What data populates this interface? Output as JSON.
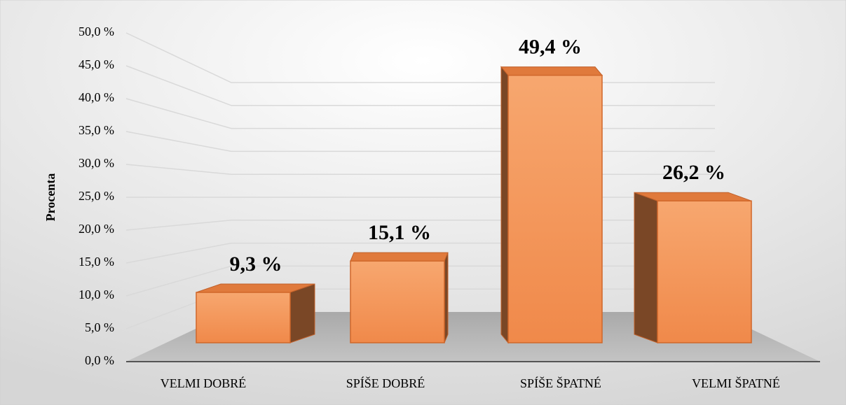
{
  "chart_data": {
    "type": "bar3d",
    "y_label": "Procenta",
    "categories": [
      "VELMI DOBRÉ",
      "SPÍŠE DOBRÉ",
      "SPÍŠE ŠPATNÉ",
      "VELMI ŠPATNÉ"
    ],
    "values": [
      9.3,
      15.1,
      49.4,
      26.2
    ],
    "value_labels": [
      "9,3 %",
      "15,1 %",
      "49,4 %",
      "26,2 %"
    ],
    "color": "#f0894a",
    "ylim": [
      0,
      50
    ],
    "yticks": [
      {
        "value": 0,
        "label": "0,0 %"
      },
      {
        "value": 5,
        "label": "5,0 %"
      },
      {
        "value": 10,
        "label": "10,0 %"
      },
      {
        "value": 15,
        "label": "15,0 %"
      },
      {
        "value": 20,
        "label": "20,0 %"
      },
      {
        "value": 25,
        "label": "25,0 %"
      },
      {
        "value": 30,
        "label": "30,0 %"
      },
      {
        "value": 35,
        "label": "35,0 %"
      },
      {
        "value": 40,
        "label": "40,0 %"
      },
      {
        "value": 45,
        "label": "45,0 %"
      },
      {
        "value": 50,
        "label": "50,0 %"
      }
    ],
    "grid": true
  }
}
